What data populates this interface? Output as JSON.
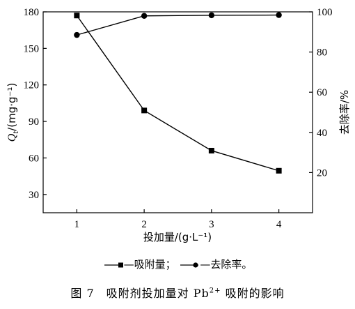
{
  "chart_data": {
    "type": "line",
    "x": [
      1,
      2,
      3,
      4
    ],
    "xlabel": "投加量/(g·L⁻¹)",
    "xticks": [
      "1",
      "2",
      "3",
      "4"
    ],
    "xlim": [
      0.5,
      4.5
    ],
    "left_axis": {
      "label_var": "Q",
      "label_sub": "t",
      "label_unit": "/(mg·g⁻¹)",
      "ylim": [
        15,
        180
      ],
      "ticks": [
        "30",
        "60",
        "90",
        "120",
        "150",
        "180"
      ]
    },
    "right_axis": {
      "label": "去除率/%",
      "ylim": [
        0,
        100
      ],
      "ticks": [
        "20",
        "40",
        "60",
        "80",
        "100"
      ]
    },
    "series": [
      {
        "name": "吸附量",
        "axis": "left",
        "marker": "square",
        "values": [
          177,
          99,
          66,
          49.5
        ]
      },
      {
        "name": "去除率",
        "axis": "right",
        "marker": "circle",
        "values": [
          88.5,
          98,
          98.3,
          98.4
        ]
      }
    ],
    "grid": false
  },
  "legend": {
    "item1": "—吸附量；",
    "item2": "—去除率。"
  },
  "caption": {
    "prefix": "图 7　吸附剂投加量对 Pb",
    "sup": "2+",
    "suffix": " 吸附的影响"
  }
}
